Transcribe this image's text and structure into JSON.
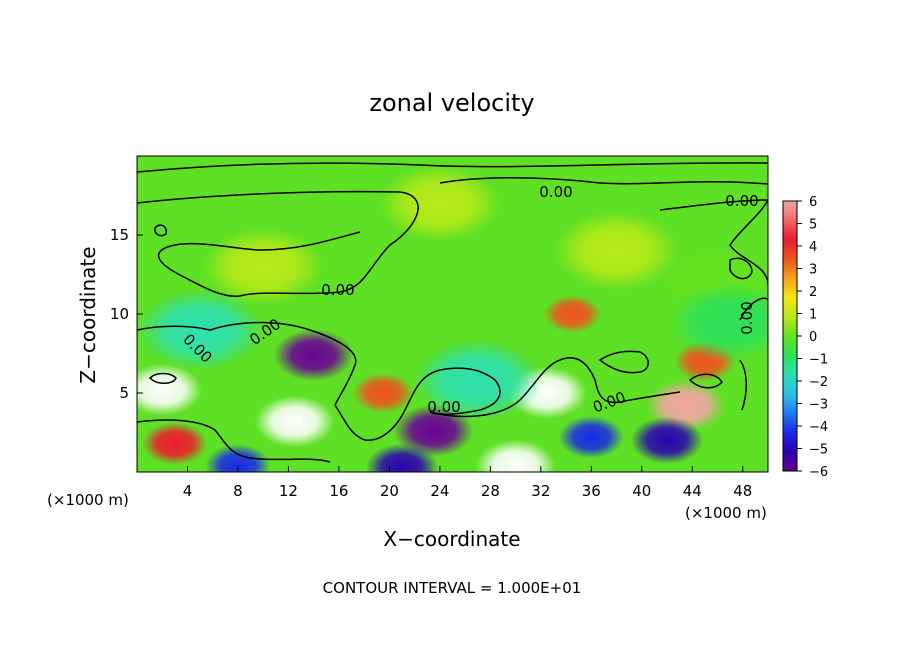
{
  "chart_data": {
    "type": "heatmap",
    "title": "zonal velocity",
    "xlabel": "X−coordinate",
    "ylabel": "Z−coordinate",
    "x_unit_left": "(×1000 m)",
    "x_unit_right": "(×1000 m)",
    "xlim": [
      0,
      50
    ],
    "ylim": [
      0,
      20
    ],
    "x_ticks": [
      4,
      8,
      12,
      16,
      20,
      24,
      28,
      32,
      36,
      40,
      44,
      48
    ],
    "y_ticks": [
      5,
      10,
      15
    ],
    "contour_label": "0.00",
    "footer": "CONTOUR INTERVAL = 1.000E+01",
    "colorbar": {
      "ticks": [
        "6",
        "5",
        "4",
        "3",
        "2",
        "1",
        "0",
        "−1",
        "−2",
        "−3",
        "−4",
        "−5",
        "−6"
      ],
      "range": [
        -6,
        6
      ],
      "colors": [
        "#6a0094",
        "#2b00b0",
        "#1a2ae8",
        "#1f7cf0",
        "#2dbfe8",
        "#2ee0b0",
        "#2ee05a",
        "#64e21e",
        "#b8ea18",
        "#f5e615",
        "#f7a21a",
        "#f0521e",
        "#ee1a2c",
        "#f06a6a",
        "#f5a5a5"
      ]
    },
    "features": [
      {
        "x": 2,
        "z": 5.2,
        "value": -8
      },
      {
        "x": 12.5,
        "z": 3.2,
        "value": 8
      },
      {
        "x": 14,
        "z": 7.4,
        "value": -6
      },
      {
        "x": 19.5,
        "z": 5,
        "value": 3.5
      },
      {
        "x": 23.5,
        "z": 2.6,
        "value": -6
      },
      {
        "x": 32.5,
        "z": 5,
        "value": 8
      },
      {
        "x": 34.5,
        "z": 10,
        "value": 3
      },
      {
        "x": 43.5,
        "z": 4.2,
        "value": 6
      },
      {
        "x": 45,
        "z": 7,
        "value": 3.5
      },
      {
        "x": 42,
        "z": 2,
        "value": -5
      },
      {
        "x": 36,
        "z": 2.2,
        "value": -4
      },
      {
        "x": 30,
        "z": 0.4,
        "value": -7
      },
      {
        "x": 21,
        "z": 0.3,
        "value": -5
      },
      {
        "x": 8,
        "z": 0.4,
        "value": -4
      },
      {
        "x": 3,
        "z": 1.8,
        "value": 4
      },
      {
        "x": 24,
        "z": 17,
        "value": 0.6
      },
      {
        "x": 10,
        "z": 13,
        "value": 0.7
      },
      {
        "x": 38,
        "z": 14,
        "value": 1.2
      },
      {
        "x": 46,
        "z": 12,
        "value": -0.3
      },
      {
        "x": 5,
        "z": 9,
        "value": -1.5
      },
      {
        "x": 27,
        "z": 5.8,
        "value": -1.8
      },
      {
        "x": 47,
        "z": 9.5,
        "value": -1.2
      }
    ]
  }
}
